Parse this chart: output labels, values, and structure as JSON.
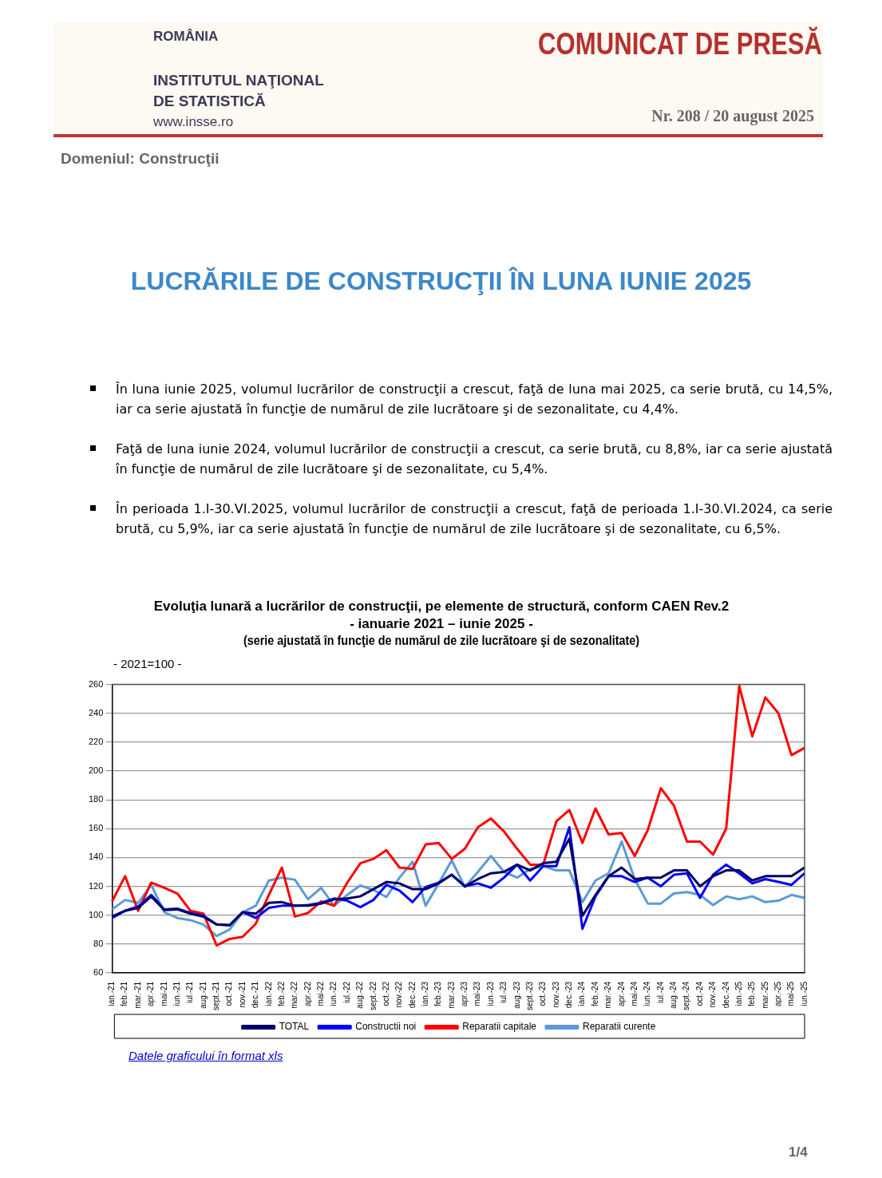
{
  "chart_data": {
    "type": "line",
    "title": "Evoluţia lunară a lucrărilor de construcţii, pe elemente de structură, conform CAEN Rev.2",
    "subtitle": "- ianuarie 2021 – iunie 2025 -",
    "ylabel": "- 2021=100 -",
    "annotations": [
      "ROMÂNIA",
      "INSTITUTUL NAŢIONAL",
      "DE STATISTICĂ",
      "www.insse.ro",
      "COMUNICAT DE PRESĂ",
      "Nr. 208 / 20 august 2025",
      "Domeniul: Construcţii",
      "LUCRĂRILE DE CONSTRUCŢII ÎN LUNA IUNIE 2025",
      "În luna iunie 2025, volumul lucrărilor de construcţii a crescut, faţă de luna mai 2025, ca serie brută, cu 14,5%, iar ca serie ajustată în funcţie de numărul de zile lucrătoare şi de sezonalitate, cu 4,4%.",
      "Faţă de luna iunie 2024, volumul lucrărilor de construcţii a crescut, ca serie brută, cu 8,8%, iar ca serie ajustată în funcţie de numărul de zile lucrătoare şi de sezonalitate, cu 5,4%.",
      "În perioada 1.I-30.VI.2025, volumul lucrărilor de construcţii a crescut, faţă de perioada 1.I-30.VI.2024, ca serie brută, cu 5,9%, iar ca serie ajustată în funcţie de numărul de zile lucrătoare şi de sezonalitate, cu 6,5%.",
      "(serie ajustată în funcţie de numărul de zile lucrătoare şi de sezonalitate)",
      "Datele graficului în format xls",
      "1/4"
    ],
    "categories": [
      "ian.-21",
      "feb.-21",
      "mar.-21",
      "apr.-21",
      "mai-21",
      "iun.-21",
      "iul.-21",
      "aug.-21",
      "sept.-21",
      "oct.-21",
      "nov.-21",
      "dec.-21",
      "ian.-22",
      "feb.-22",
      "mar.-22",
      "apr.-22",
      "mai-22",
      "iun.-22",
      "iul.-22",
      "aug.-22",
      "sept.-22",
      "oct.-22",
      "nov.-22",
      "dec.-22",
      "ian.-23",
      "feb.-23",
      "mar.-23",
      "apr.-23",
      "mai-23",
      "iun.-23",
      "iul.-23",
      "aug.-23",
      "sept.-23",
      "oct.-23",
      "nov.-23",
      "dec.-23",
      "ian.-24",
      "feb.-24",
      "mar.-24",
      "apr.-24",
      "mai-24",
      "iun.-24",
      "iul.-24",
      "aug.-24",
      "sept.-24",
      "oct.-24",
      "nov.-24",
      "dec.-24",
      "ian.-25",
      "feb.-25",
      "mar.-25",
      "apr.-25",
      "mai-25",
      "iun.-25"
    ],
    "series": [
      {
        "name": "TOTAL",
        "color": "#000066",
        "values": [
          99,
          103,
          105,
          113,
          103.5,
          104,
          101,
          99,
          93.5,
          93,
          102,
          101,
          108.5,
          109,
          106.5,
          106.5,
          108,
          111,
          111.5,
          113,
          118,
          123,
          122,
          118,
          118,
          122,
          128,
          120,
          125,
          129,
          130,
          135,
          131,
          136,
          137,
          153,
          99.5,
          114,
          127,
          133,
          125,
          126,
          126,
          131,
          131,
          120,
          127,
          131,
          131,
          124,
          127,
          127,
          127,
          133
        ]
      },
      {
        "name": "Constructii noi",
        "color": "#0000ff",
        "values": [
          98,
          103,
          106,
          114,
          104,
          104.5,
          101.5,
          99.5,
          93.5,
          93,
          102,
          98,
          105,
          106.5,
          106.5,
          107,
          108.5,
          111.5,
          110,
          105.5,
          110.5,
          121,
          117,
          109,
          119.5,
          122.5,
          128,
          120,
          122,
          119,
          126,
          135,
          124,
          134,
          134,
          161,
          90.5,
          113,
          127,
          127,
          123,
          126,
          120,
          128,
          129,
          112,
          128,
          135,
          129,
          122,
          125,
          123,
          121,
          129
        ]
      },
      {
        "name": "Reparatii capitale",
        "color": "#ff0000",
        "values": [
          109.5,
          127,
          103,
          122.5,
          119,
          115,
          103,
          101,
          79,
          83.5,
          85,
          94,
          114,
          133,
          99,
          101.5,
          109.5,
          106.5,
          122.5,
          136,
          139,
          145,
          133,
          132,
          149,
          150,
          139,
          146,
          161,
          167,
          158,
          146,
          135,
          135,
          165,
          173,
          150,
          174,
          156,
          157,
          141,
          159,
          188,
          176,
          151,
          151,
          142,
          160,
          259,
          224,
          251,
          240,
          211,
          216
        ]
      },
      {
        "name": "Reparatii curente",
        "color": "#5b9bd5",
        "values": [
          104,
          110.5,
          108.5,
          121,
          102,
          98,
          96.5,
          93.5,
          85.5,
          90,
          102,
          106.5,
          124,
          126,
          124.5,
          111,
          119,
          106.5,
          114,
          120.5,
          117.5,
          112.5,
          126,
          137,
          106.5,
          122,
          138,
          119.5,
          130,
          141,
          130,
          126,
          132,
          134,
          131,
          131,
          109,
          124,
          129,
          151,
          125,
          108,
          108,
          115,
          116,
          114,
          107,
          113,
          111,
          113,
          109,
          110,
          114,
          112
        ]
      }
    ],
    "ylim": [
      60,
      260
    ],
    "yticks": [
      60,
      80,
      100,
      120,
      140,
      160,
      180,
      200,
      220,
      240,
      260
    ],
    "grid": "y",
    "legend": "bottom",
    "marker": "none",
    "line_style": "solid"
  }
}
